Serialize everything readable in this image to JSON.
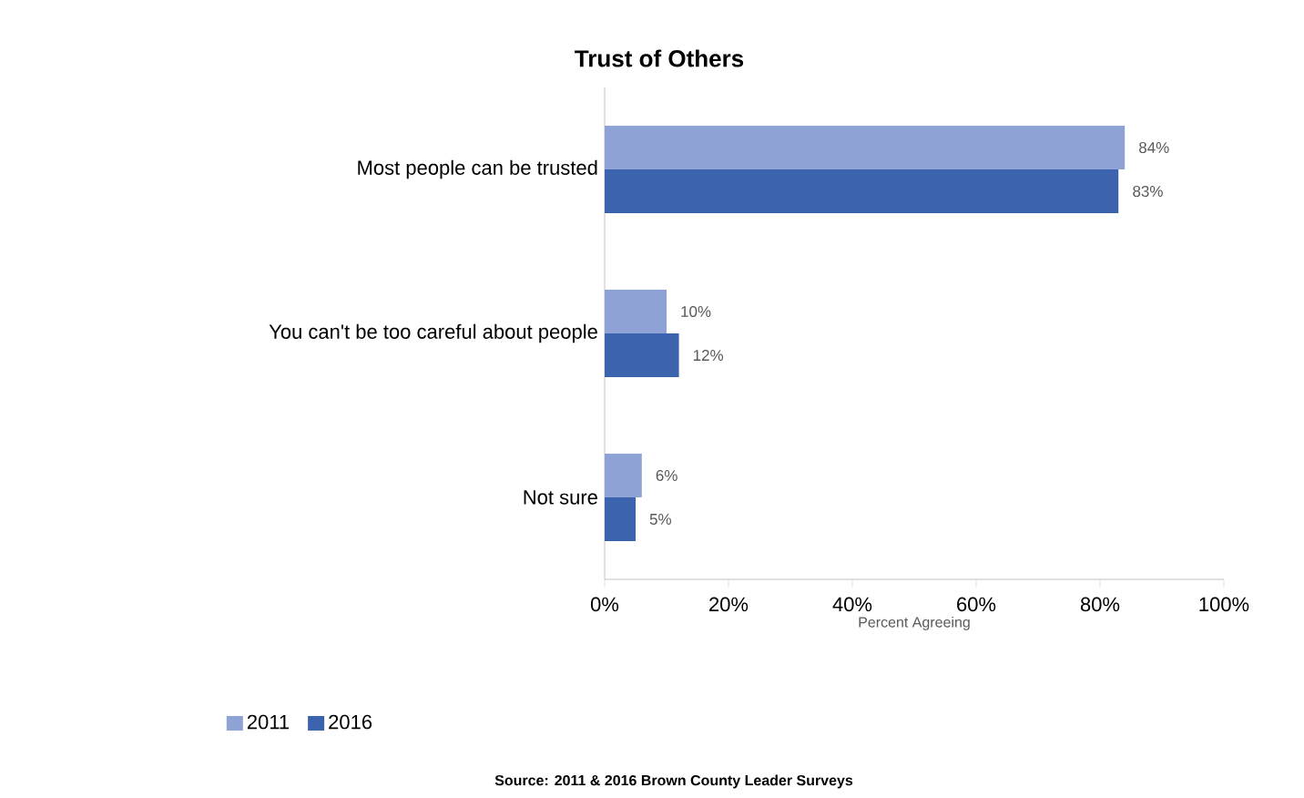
{
  "chart_data": {
    "type": "bar",
    "orientation": "horizontal",
    "title": "Trust of Others",
    "xlabel": "Percent Agreeing",
    "categories": [
      "Most people can be trusted",
      "You can't be too careful about people",
      "Not sure"
    ],
    "series": [
      {
        "name": "2011",
        "color": "#8fa2d6",
        "values": [
          84,
          10,
          6
        ],
        "value_labels": [
          "84%",
          "10%",
          "6%"
        ]
      },
      {
        "name": "2016",
        "color": "#3c63ad",
        "values": [
          83,
          12,
          5
        ],
        "value_labels": [
          "83%",
          "12%",
          "5%"
        ]
      }
    ],
    "xlim": [
      0,
      100
    ],
    "xticks": [
      {
        "value": 0,
        "label": "0%"
      },
      {
        "value": 20,
        "label": "20%"
      },
      {
        "value": 40,
        "label": "40%"
      },
      {
        "value": 60,
        "label": "60%"
      },
      {
        "value": 80,
        "label": "80%"
      },
      {
        "value": 100,
        "label": "100%"
      }
    ],
    "legend": "bottom",
    "grid": false,
    "annotations": [
      "Source: 2011 & 2016 Brown County Leader Surveys"
    ]
  }
}
